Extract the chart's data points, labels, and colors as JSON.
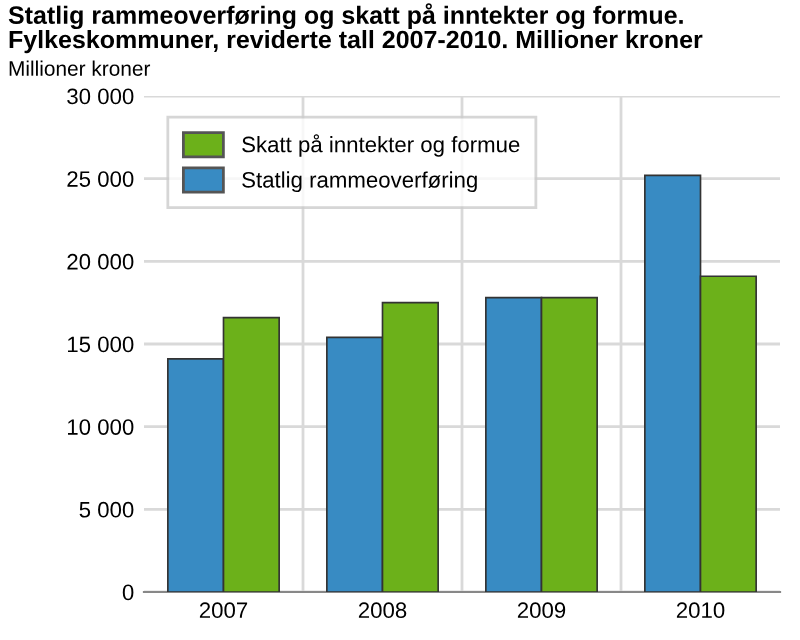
{
  "chart_data": {
    "type": "bar",
    "title": "Statlig rammeoverføring og skatt på inntekter og formue.\nFylkeskommuner, reviderte tall 2007-2010. Millioner kroner",
    "ylabel": "Millioner kroner",
    "categories": [
      "2007",
      "2008",
      "2009",
      "2010"
    ],
    "series": [
      {
        "name": "Statlig rammeoverføring",
        "color": "#388bc3",
        "values": [
          14100,
          15400,
          17800,
          25200
        ]
      },
      {
        "name": "Skatt på inntekter og formue",
        "color": "#6cb11a",
        "values": [
          16600,
          17500,
          17800,
          19100
        ]
      }
    ],
    "ylim": [
      0,
      30000
    ],
    "yticks": [
      0,
      {
        "value": 5000,
        "label": "5 000"
      },
      {
        "value": 10000,
        "label": "10 000"
      },
      {
        "value": 15000,
        "label": "15 000"
      },
      {
        "value": 20000,
        "label": "20 000"
      },
      {
        "value": 25000,
        "label": "25 000"
      },
      {
        "value": 30000,
        "label": "30 000"
      }
    ],
    "grid": true,
    "legend": "top left"
  }
}
